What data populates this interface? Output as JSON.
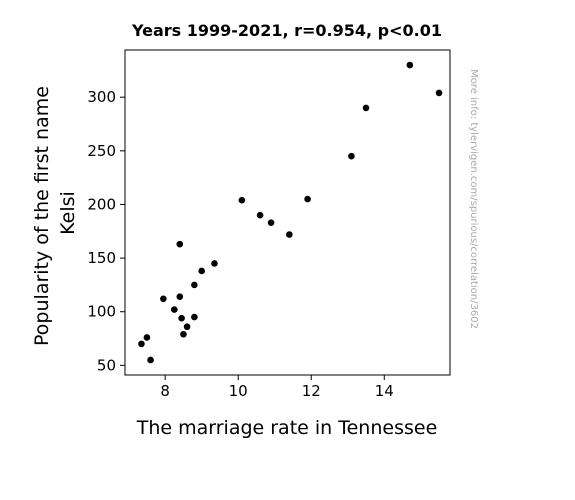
{
  "chart_data": {
    "type": "scatter",
    "title": "Years 1999-2021, r=0.954, p<0.01",
    "xlabel": "The marriage rate in Tennessee",
    "ylabel_lines": [
      "Popularity of the first name",
      "Kelsi"
    ],
    "watermark": "More info: tylervigen.com/spurious/correlation/3602",
    "xlim": [
      6.9,
      15.8
    ],
    "ylim": [
      41,
      344
    ],
    "xticks": [
      8,
      10,
      12,
      14
    ],
    "yticks": [
      50,
      100,
      150,
      200,
      250,
      300
    ],
    "grid": false,
    "marker_color": "#000000",
    "points": [
      {
        "x": 7.35,
        "y": 70
      },
      {
        "x": 7.5,
        "y": 76
      },
      {
        "x": 7.6,
        "y": 55
      },
      {
        "x": 7.95,
        "y": 112
      },
      {
        "x": 8.25,
        "y": 102
      },
      {
        "x": 8.4,
        "y": 163
      },
      {
        "x": 8.4,
        "y": 114
      },
      {
        "x": 8.45,
        "y": 94
      },
      {
        "x": 8.5,
        "y": 79
      },
      {
        "x": 8.6,
        "y": 86
      },
      {
        "x": 8.8,
        "y": 125
      },
      {
        "x": 8.8,
        "y": 95
      },
      {
        "x": 9.0,
        "y": 138
      },
      {
        "x": 9.35,
        "y": 145
      },
      {
        "x": 10.1,
        "y": 204
      },
      {
        "x": 10.6,
        "y": 190
      },
      {
        "x": 10.9,
        "y": 183
      },
      {
        "x": 11.4,
        "y": 172
      },
      {
        "x": 11.9,
        "y": 205
      },
      {
        "x": 13.1,
        "y": 245
      },
      {
        "x": 13.5,
        "y": 290
      },
      {
        "x": 14.7,
        "y": 330
      },
      {
        "x": 15.5,
        "y": 304
      }
    ]
  }
}
